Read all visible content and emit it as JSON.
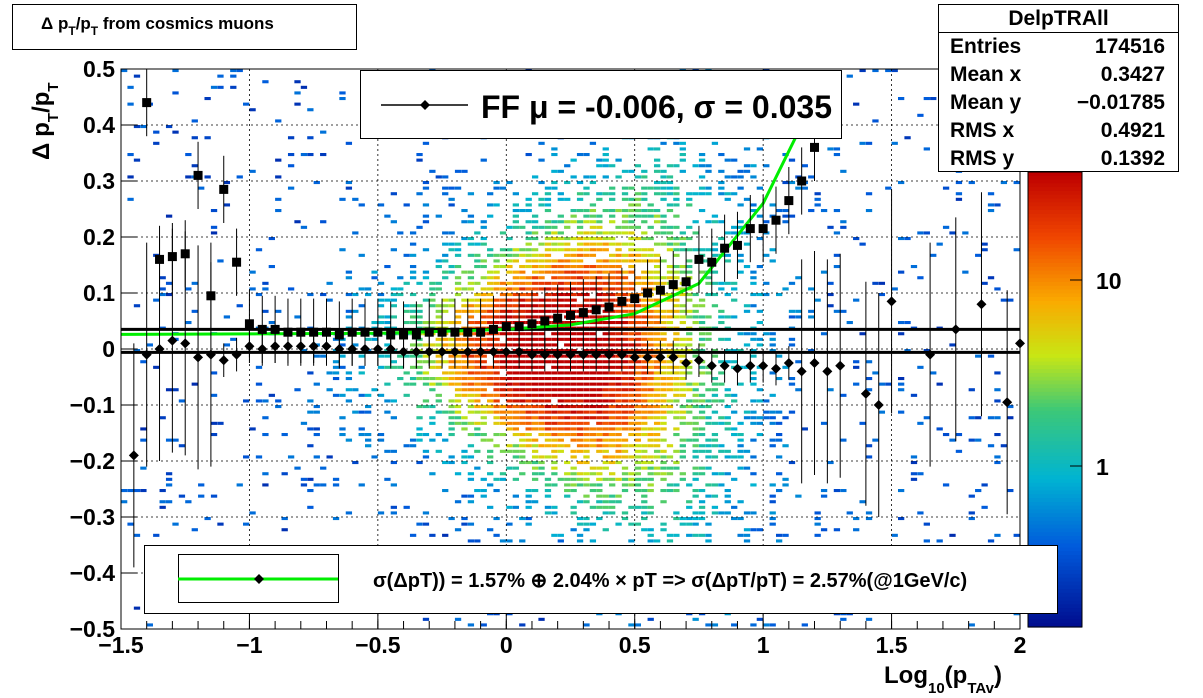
{
  "title_box": {
    "delta": "Δ",
    "p1": "p",
    "sub1": "T",
    "slash": "/p",
    "sub2": "T",
    "rest": "from cosmics muons"
  },
  "stats": {
    "name": "DelpTRAll",
    "rows": [
      {
        "key": "Entries",
        "value": "174516"
      },
      {
        "key": "Mean x",
        "value": "0.3427"
      },
      {
        "key": "Mean y",
        "value": "−0.01785"
      },
      {
        "key": "RMS x",
        "value": "0.4921"
      },
      {
        "key": "RMS y",
        "value": "0.1392"
      }
    ]
  },
  "legend_top": {
    "text": "FF μ = -0.006, σ =   0.035"
  },
  "legend_bottom": {
    "text": "σ(ΔpT)) =  1.57% ⊕  2.04% × pT => σ(ΔpT/pT) =  2.57%(@1GeV/c)"
  },
  "axes": {
    "ylabel": {
      "d": "Δ",
      "p": "p",
      "s1": "T",
      "sl": "/p",
      "s2": "T"
    },
    "xlabel": {
      "log": "Log",
      "s": "10",
      "p": "(p",
      "ss": "TAv",
      "close": ")"
    },
    "x_ticks": [
      "−1.5",
      "−1",
      "−0.5",
      "0",
      "0.5",
      "1",
      "1.5",
      "2"
    ],
    "y_ticks": [
      "0.5",
      "0.4",
      "0.3",
      "0.2",
      "0.1",
      "0",
      "−0.1",
      "−0.2",
      "−0.3",
      "−0.4",
      "−0.5"
    ],
    "z_ticks": [
      "10",
      "1"
    ]
  },
  "colors": {
    "fit_curve": "#00ee00",
    "markers": "#000000",
    "hist_low": "#1a3bb0",
    "hist_high": "#cc1a00"
  },
  "chart_data": {
    "type": "heatmap",
    "xlim": [
      -1.5,
      2.0
    ],
    "ylim": [
      -0.5,
      0.5
    ],
    "zscale": "log",
    "grid": true,
    "x_ticks": [
      -1.5,
      -1,
      -0.5,
      0,
      0.5,
      1,
      1.5,
      2
    ],
    "y_ticks": [
      0.5,
      0.4,
      0.3,
      0.2,
      0.1,
      0,
      -0.1,
      -0.2,
      -0.3,
      -0.4,
      -0.5
    ],
    "z_ticks": [
      10,
      1
    ],
    "mean_points": {
      "x": [
        -1.45,
        -1.4,
        -1.35,
        -1.3,
        -1.25,
        -1.2,
        -1.15,
        -1.1,
        -1.05,
        -1.0,
        -0.95,
        -0.9,
        -0.85,
        -0.8,
        -0.75,
        -0.7,
        -0.65,
        -0.6,
        -0.55,
        -0.5,
        -0.45,
        -0.4,
        -0.35,
        -0.3,
        -0.25,
        -0.2,
        -0.15,
        -0.1,
        -0.05,
        0.0,
        0.05,
        0.1,
        0.15,
        0.2,
        0.25,
        0.3,
        0.35,
        0.4,
        0.45,
        0.5,
        0.55,
        0.6,
        0.65,
        0.7,
        0.75,
        0.8,
        0.85,
        0.9,
        0.95,
        1.0,
        1.05,
        1.1,
        1.15,
        1.2,
        1.25,
        1.3,
        1.4,
        1.45,
        1.5,
        1.65,
        1.75,
        1.85,
        1.95,
        2.0
      ],
      "y": [
        -0.19,
        -0.01,
        0.0,
        0.015,
        0.01,
        -0.015,
        -0.01,
        -0.02,
        -0.01,
        0.005,
        0.0,
        0.005,
        0.005,
        0.005,
        0.005,
        0.005,
        0.0,
        0.0,
        0.0,
        0.0,
        0.0,
        -0.005,
        -0.005,
        -0.005,
        -0.005,
        -0.005,
        -0.005,
        -0.005,
        -0.005,
        -0.005,
        -0.005,
        -0.01,
        -0.01,
        -0.01,
        -0.01,
        -0.01,
        -0.01,
        -0.01,
        -0.01,
        -0.015,
        -0.015,
        -0.015,
        -0.015,
        -0.025,
        -0.02,
        -0.03,
        -0.03,
        -0.035,
        -0.03,
        -0.03,
        -0.035,
        -0.025,
        -0.04,
        -0.025,
        -0.04,
        -0.03,
        -0.08,
        -0.1,
        0.085,
        -0.01,
        0.035,
        0.08,
        -0.095,
        0.01
      ]
    },
    "sigma_points": {
      "x": [
        -1.4,
        -1.35,
        -1.3,
        -1.25,
        -1.2,
        -1.15,
        -1.1,
        -1.05,
        -1.0,
        -0.95,
        -0.9,
        -0.85,
        -0.8,
        -0.75,
        -0.7,
        -0.65,
        -0.6,
        -0.55,
        -0.5,
        -0.45,
        -0.4,
        -0.35,
        -0.3,
        -0.25,
        -0.2,
        -0.15,
        -0.1,
        -0.05,
        0.0,
        0.05,
        0.1,
        0.15,
        0.2,
        0.25,
        0.3,
        0.35,
        0.4,
        0.45,
        0.5,
        0.55,
        0.6,
        0.65,
        0.7,
        0.75,
        0.8,
        0.85,
        0.9,
        0.95,
        1.0,
        1.05,
        1.1,
        1.15,
        1.2
      ],
      "y": [
        0.44,
        0.16,
        0.165,
        0.17,
        0.31,
        0.095,
        0.285,
        0.155,
        0.045,
        0.035,
        0.035,
        0.03,
        0.03,
        0.03,
        0.03,
        0.025,
        0.03,
        0.03,
        0.03,
        0.025,
        0.025,
        0.025,
        0.03,
        0.03,
        0.03,
        0.03,
        0.03,
        0.035,
        0.04,
        0.04,
        0.045,
        0.05,
        0.055,
        0.06,
        0.065,
        0.07,
        0.075,
        0.085,
        0.09,
        0.1,
        0.105,
        0.115,
        0.12,
        0.16,
        0.155,
        0.18,
        0.185,
        0.215,
        0.215,
        0.23,
        0.265,
        0.3,
        0.36
      ]
    },
    "fit_curve": {
      "x": [
        -1.5,
        -1.0,
        -0.5,
        0.0,
        0.25,
        0.5,
        0.75,
        1.0,
        1.15
      ],
      "y": [
        0.026,
        0.027,
        0.028,
        0.035,
        0.043,
        0.063,
        0.117,
        0.26,
        0.4
      ]
    },
    "hlines": [
      0.035,
      -0.006
    ]
  }
}
